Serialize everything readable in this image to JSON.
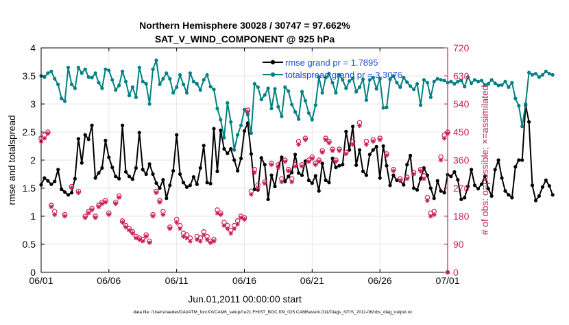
{
  "chart_data": {
    "type": "line",
    "title": "Northern Hemisphere 30028 / 30747 = 97.662%",
    "subtitle": "SAT_V_WIND_COMPONENT @ 925 hPa",
    "xlabel": "Jun.01,2011 00:00:00 start",
    "ylabel": "rmse and totalspread",
    "y2label": "# of obs: o=possible; ×=assimilated",
    "footnote": "data file: /Users/raeder/DAI/ATM_forcXX/CAM6_setup/f.e21.FHIST_BGC.f09_025.CAM6assim.011/Diags_NTrS_2011-06/obs_diag_output.nc",
    "xlim": [
      0,
      30
    ],
    "ylim": [
      0,
      4
    ],
    "y2lim": [
      0,
      720
    ],
    "x_ticks": [
      0,
      5,
      10,
      15,
      20,
      25,
      30
    ],
    "x_tick_labels": [
      "06/01",
      "06/06",
      "06/11",
      "06/16",
      "06/21",
      "06/26",
      "07/01"
    ],
    "y_ticks": [
      0,
      0.5,
      1,
      1.5,
      2,
      2.5,
      3,
      3.5,
      4
    ],
    "y_tick_labels": [
      "0",
      "0.5",
      "1",
      "1.5",
      "2",
      "2.5",
      "3",
      "3.5",
      "4"
    ],
    "y2_ticks": [
      0,
      90,
      180,
      270,
      360,
      450,
      540,
      630,
      720
    ],
    "y2_tick_labels": [
      "0",
      "90",
      "180",
      "270",
      "360",
      "450",
      "540",
      "630",
      "720"
    ],
    "grid": true,
    "legend_position": "top-right",
    "colors": {
      "rmse": "#000000",
      "spread": "#008080",
      "obs": "#cc1e5a",
      "legend_text": "#1f4fd8"
    },
    "series": [
      {
        "name": "rmse grand pr = 1.7895",
        "axis": "left",
        "marker": "filled-circle",
        "x_start": 0,
        "x_step": 0.25,
        "values": [
          1.56,
          1.68,
          1.63,
          1.57,
          1.62,
          1.83,
          1.48,
          1.43,
          1.38,
          1.42,
          1.67,
          2.38,
          1.95,
          2.45,
          2.37,
          2.62,
          1.68,
          1.77,
          1.86,
          2.35,
          2.05,
          1.87,
          1.71,
          1.67,
          2.62,
          1.79,
          1.71,
          1.66,
          1.86,
          2.49,
          1.83,
          1.75,
          1.93,
          1.75,
          1.59,
          1.5,
          1.65,
          1.32,
          1.55,
          1.81,
          2.45,
          1.75,
          1.6,
          1.52,
          1.55,
          1.7,
          1.57,
          1.86,
          2.26,
          1.6,
          1.58,
          2.56,
          1.8,
          2.53,
          2.2,
          2.12,
          2.2,
          2.0,
          1.81,
          2.03,
          2.52,
          2.66,
          2.11,
          1.48,
          1.47,
          2.04,
          1.92,
          1.3,
          1.73,
          1.53,
          1.88,
          2.05,
          1.62,
          1.71,
          1.78,
          2.1,
          1.77,
          1.73,
          1.98,
          1.64,
          1.59,
          1.72,
          1.45,
          1.94,
          1.64,
          1.6,
          2.03,
          1.87,
          1.9,
          1.92,
          2.51,
          2.18,
          2.6,
          1.91,
          2.18,
          1.8,
          1.73,
          2.1,
          2.18,
          2.24,
          1.68,
          2.25,
          1.9,
          1.55,
          1.73,
          1.64,
          1.63,
          1.56,
          1.92,
          2.08,
          1.5,
          1.47,
          1.67,
          1.86,
          1.73,
          1.5,
          1.32,
          1.63,
          1.45,
          1.42,
          1.74,
          1.71,
          1.79,
          1.65,
          1.3,
          1.33,
          1.53,
          1.83,
          1.55,
          1.49,
          1.57,
          1.72,
          1.49,
          1.36,
          1.83,
          2.0,
          1.68,
          1.45,
          1.38,
          1.33,
          1.88,
          2.0,
          2.0,
          2.98,
          2.68,
          1.55,
          1.28,
          1.36,
          1.52,
          1.64,
          1.54,
          1.38
        ]
      },
      {
        "name": "totalspread grand pr = 3.3076",
        "axis": "left",
        "marker": "filled-circle",
        "x_start": 0,
        "x_step": 0.25,
        "values": [
          3.5,
          3.48,
          3.55,
          3.58,
          3.45,
          3.35,
          3.1,
          3.05,
          3.65,
          3.35,
          3.28,
          3.65,
          3.55,
          3.62,
          3.48,
          3.47,
          3.55,
          3.38,
          3.28,
          3.62,
          3.6,
          3.43,
          3.25,
          3.33,
          3.58,
          3.4,
          3.15,
          3.3,
          3.12,
          3.65,
          3.4,
          3.36,
          3.0,
          3.62,
          3.78,
          3.35,
          3.45,
          3.55,
          3.45,
          3.2,
          3.3,
          3.52,
          3.35,
          3.2,
          3.55,
          3.4,
          3.36,
          3.25,
          3.43,
          3.52,
          3.31,
          3.26,
          2.92,
          2.72,
          2.4,
          3.02,
          2.68,
          2.18,
          2.45,
          2.62,
          2.9,
          2.81,
          2.48,
          3.36,
          3.3,
          3.08,
          3.16,
          3.28,
          2.92,
          3.27,
          2.95,
          2.78,
          3.3,
          3.23,
          2.99,
          2.86,
          2.73,
          3.22,
          3.06,
          2.84,
          2.72,
          2.98,
          3.48,
          3.2,
          3.47,
          3.54,
          3.38,
          3.2,
          3.52,
          3.43,
          3.28,
          3.41,
          3.46,
          3.22,
          3.3,
          3.44,
          3.07,
          3.43,
          3.47,
          3.27,
          3.45,
          2.93,
          2.94,
          3.44,
          3.5,
          3.38,
          3.3,
          3.47,
          3.39,
          3.32,
          3.26,
          3.36,
          2.98,
          3.43,
          3.38,
          3.12,
          3.4,
          3.45,
          3.43,
          3.42,
          3.38,
          3.4,
          3.36,
          3.4,
          3.42,
          3.31,
          3.48,
          3.37,
          3.43,
          3.4,
          3.42,
          3.34,
          3.36,
          3.43,
          3.37,
          3.33,
          3.34,
          3.4,
          3.3,
          3.38,
          3.1,
          2.97,
          2.6,
          3.0,
          3.56,
          3.52,
          3.54,
          3.48,
          3.52,
          3.58,
          3.54,
          3.52
        ]
      }
    ],
    "obs_counts": [
      {
        "name": "possible",
        "axis": "right",
        "marker": "o",
        "x": [
          0,
          0.25,
          0.5,
          0.75,
          1.0,
          1.75,
          2.25,
          2.75,
          3.25,
          3.5,
          3.75,
          4.0,
          4.25,
          4.5,
          4.75,
          5.0,
          5.5,
          5.75,
          6.0,
          6.25,
          6.5,
          6.75,
          7.0,
          7.25,
          7.5,
          7.75,
          8.0,
          8.25,
          8.5,
          8.75,
          9.0,
          9.5,
          10.0,
          10.25,
          10.5,
          10.75,
          11.0,
          11.5,
          11.75,
          12.0,
          12.25,
          12.5,
          12.75,
          13.0,
          13.25,
          13.5,
          13.75,
          14.0,
          14.25,
          14.5,
          14.75,
          15.0,
          15.25,
          15.5,
          15.75,
          16.0,
          16.5,
          17.0,
          17.5,
          17.75,
          18.0,
          18.25,
          18.5,
          18.75,
          19.0,
          19.25,
          19.5,
          19.75,
          20.0,
          20.25,
          20.5,
          20.75,
          21.0,
          21.25,
          21.5,
          21.75,
          22.0,
          22.5,
          23.0,
          23.5,
          24.0,
          24.5,
          25.0,
          25.5,
          26.0,
          26.5,
          27.0,
          27.5,
          28.0,
          28.25,
          28.5,
          28.75,
          29.0,
          29.5,
          29.75,
          30.0
        ],
        "values": [
          430,
          440,
          450,
          215,
          195,
          185,
          275,
          260,
          180,
          195,
          205,
          180,
          215,
          225,
          230,
          190,
          225,
          245,
          165,
          150,
          140,
          130,
          115,
          110,
          105,
          120,
          100,
          185,
          260,
          230,
          195,
          145,
          170,
          150,
          125,
          120,
          110,
          115,
          110,
          130,
          115,
          100,
          105,
          200,
          190,
          160,
          150,
          135,
          150,
          165,
          180,
          175,
          520,
          260,
          330,
          280,
          290,
          350,
          345,
          300,
          360,
          330,
          300,
          345,
          420,
          345,
          430,
          360,
          370,
          350,
          360,
          390,
          430,
          420,
          395,
          360,
          395,
          385,
          420,
          480,
          420,
          425,
          430,
          380,
          330,
          300,
          305,
          320,
          330,
          310,
          240,
          190,
          195,
          370,
          440,
          450
        ]
      },
      {
        "name": "assimilated",
        "axis": "right",
        "marker": "*",
        "x": [
          0,
          0.25,
          0.5,
          0.75,
          1.0,
          1.75,
          2.25,
          2.75,
          3.25,
          3.5,
          3.75,
          4.0,
          4.25,
          4.5,
          4.75,
          5.0,
          5.5,
          5.75,
          6.0,
          6.25,
          6.5,
          6.75,
          7.0,
          7.25,
          7.5,
          7.75,
          8.0,
          8.25,
          8.5,
          8.75,
          9.0,
          9.5,
          10.0,
          10.25,
          10.5,
          10.75,
          11.0,
          11.5,
          11.75,
          12.0,
          12.25,
          12.5,
          12.75,
          13.0,
          13.25,
          13.5,
          13.75,
          14.0,
          14.25,
          14.5,
          14.75,
          15.0,
          15.25,
          15.5,
          15.75,
          16.0,
          16.5,
          17.0,
          17.5,
          17.75,
          18.0,
          18.25,
          18.5,
          18.75,
          19.0,
          19.25,
          19.5,
          19.75,
          20.0,
          20.25,
          20.5,
          20.75,
          21.0,
          21.25,
          21.5,
          21.75,
          22.0,
          22.5,
          23.0,
          23.5,
          24.0,
          24.5,
          25.0,
          25.5,
          26.0,
          26.5,
          27.0,
          27.5,
          28.0,
          28.25,
          28.5,
          28.75,
          29.0,
          29.5,
          29.75,
          30.0
        ],
        "values": [
          420,
          430,
          445,
          210,
          185,
          180,
          270,
          255,
          175,
          190,
          200,
          175,
          210,
          220,
          225,
          185,
          220,
          240,
          160,
          145,
          135,
          125,
          110,
          105,
          100,
          115,
          95,
          180,
          255,
          225,
          185,
          140,
          160,
          140,
          115,
          110,
          100,
          105,
          100,
          120,
          105,
          95,
          100,
          190,
          185,
          150,
          140,
          125,
          140,
          155,
          175,
          170,
          515,
          250,
          320,
          270,
          285,
          345,
          335,
          290,
          355,
          325,
          290,
          340,
          410,
          340,
          425,
          355,
          365,
          345,
          355,
          385,
          425,
          415,
          390,
          355,
          390,
          380,
          410,
          470,
          410,
          420,
          425,
          375,
          325,
          295,
          300,
          315,
          325,
          300,
          230,
          180,
          185,
          360,
          430,
          445
        ]
      }
    ]
  }
}
